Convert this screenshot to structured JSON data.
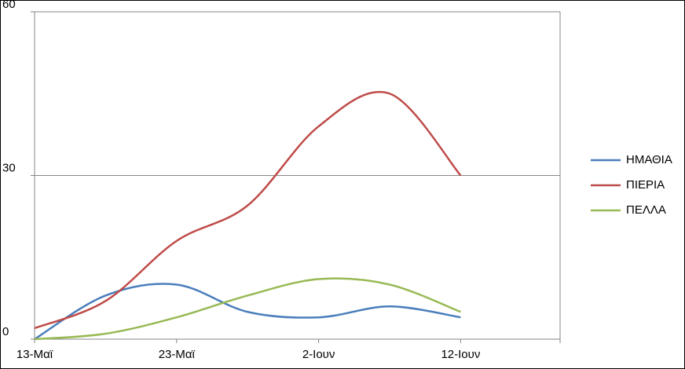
{
  "chart_data": {
    "type": "line",
    "categories": [
      "13-Μαϊ",
      null,
      "23-Μαϊ",
      null,
      "2-Ιουν",
      null,
      "12-Ιουν"
    ],
    "series": [
      {
        "name": "ΗΜΑΘΙΑ",
        "color": "#4a7ebb",
        "values": [
          0,
          8,
          10,
          5,
          4,
          6,
          4
        ]
      },
      {
        "name": "ΠΙΕΡΙΑ",
        "color": "#be4b48",
        "values": [
          2,
          7,
          18,
          24.5,
          39,
          45,
          30
        ]
      },
      {
        "name": "ΠΕΛΛΑ",
        "color": "#98b954",
        "values": [
          0,
          1,
          4,
          8,
          11,
          10,
          5
        ]
      }
    ],
    "ylim": [
      0,
      60
    ],
    "yticks": [
      0,
      30,
      60
    ],
    "grid": true,
    "legend": "right"
  }
}
